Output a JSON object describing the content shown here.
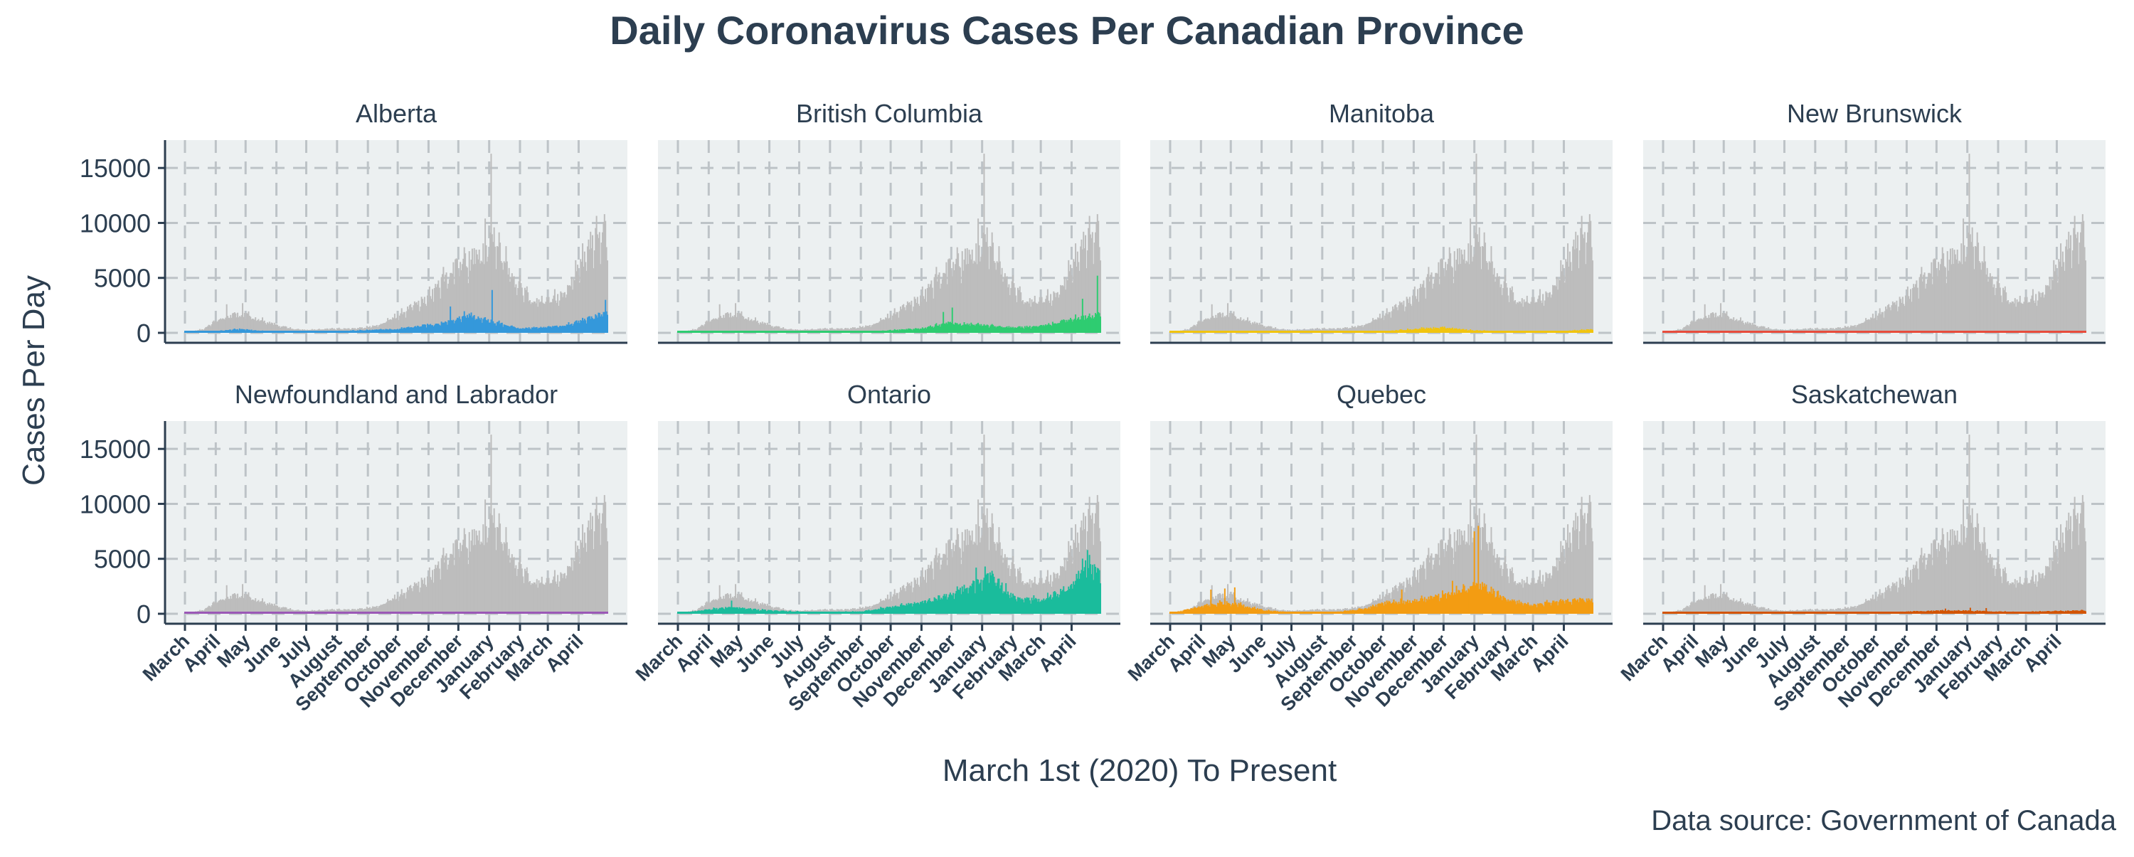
{
  "chart_data": {
    "type": "bar",
    "title": "Daily Coronavirus Cases Per Canadian Province",
    "xlabel": "March 1st (2020) To Present",
    "ylabel": "Cases Per Day",
    "caption": "Data source: Government of Canada",
    "ylim": [
      0,
      16500
    ],
    "yticks": [
      0,
      5000,
      10000,
      15000
    ],
    "x_range": [
      "2020-03-01",
      "2021-04-30"
    ],
    "month_ticks": [
      {
        "date": "2020-03-01",
        "label": "March"
      },
      {
        "date": "2020-04-01",
        "label": "April"
      },
      {
        "date": "2020-05-01",
        "label": "May"
      },
      {
        "date": "2020-06-01",
        "label": "June"
      },
      {
        "date": "2020-07-01",
        "label": "July"
      },
      {
        "date": "2020-08-01",
        "label": "August"
      },
      {
        "date": "2020-09-01",
        "label": "September"
      },
      {
        "date": "2020-10-01",
        "label": "October"
      },
      {
        "date": "2020-11-01",
        "label": "November"
      },
      {
        "date": "2020-12-01",
        "label": "December"
      },
      {
        "date": "2021-01-01",
        "label": "January"
      },
      {
        "date": "2021-02-01",
        "label": "February"
      },
      {
        "date": "2021-03-01",
        "label": "March"
      },
      {
        "date": "2021-04-01",
        "label": "April"
      }
    ],
    "grid": true,
    "background_color": "#ecf0f1",
    "grid_color": "#bdc3c7",
    "text_color": "#2c3e50",
    "national_series": {
      "color": "#bdbdbd",
      "points": [
        [
          "2020-03-01",
          0
        ],
        [
          "2020-03-20",
          350
        ],
        [
          "2020-04-01",
          1100
        ],
        [
          "2020-04-10",
          1400
        ],
        [
          "2020-04-20",
          1700
        ],
        [
          "2020-05-01",
          1600
        ],
        [
          "2020-05-15",
          1200
        ],
        [
          "2020-06-01",
          750
        ],
        [
          "2020-06-15",
          400
        ],
        [
          "2020-07-01",
          280
        ],
        [
          "2020-07-15",
          330
        ],
        [
          "2020-08-01",
          380
        ],
        [
          "2020-08-15",
          370
        ],
        [
          "2020-09-01",
          500
        ],
        [
          "2020-09-15",
          850
        ],
        [
          "2020-10-01",
          1600
        ],
        [
          "2020-10-15",
          2400
        ],
        [
          "2020-11-01",
          3200
        ],
        [
          "2020-11-15",
          4800
        ],
        [
          "2020-12-01",
          6000
        ],
        [
          "2020-12-15",
          6700
        ],
        [
          "2020-12-25",
          7000
        ],
        [
          "2021-01-01",
          8000
        ],
        [
          "2021-01-08",
          8400
        ],
        [
          "2021-01-15",
          6500
        ],
        [
          "2021-02-01",
          4200
        ],
        [
          "2021-02-15",
          3000
        ],
        [
          "2021-03-01",
          2900
        ],
        [
          "2021-03-15",
          3300
        ],
        [
          "2021-04-01",
          5500
        ],
        [
          "2021-04-10",
          7500
        ],
        [
          "2021-04-20",
          8800
        ],
        [
          "2021-04-30",
          9000
        ]
      ],
      "spikes": [
        [
          "2021-01-03",
          16300
        ],
        [
          "2021-04-27",
          10800
        ],
        [
          "2020-04-12",
          2600
        ],
        [
          "2020-04-28",
          2700
        ],
        [
          "2020-12-28",
          10400
        ],
        [
          "2020-11-16",
          6000
        ],
        [
          "2021-04-13",
          9200
        ]
      ]
    },
    "panels": [
      {
        "name": "Alberta",
        "color": "#3498db",
        "points": [
          [
            "2020-03-01",
            0
          ],
          [
            "2020-04-01",
            150
          ],
          [
            "2020-04-25",
            350
          ],
          [
            "2020-06-01",
            50
          ],
          [
            "2020-08-01",
            150
          ],
          [
            "2020-10-01",
            350
          ],
          [
            "2020-11-15",
            900
          ],
          [
            "2020-12-10",
            1600
          ],
          [
            "2021-01-01",
            1100
          ],
          [
            "2021-02-01",
            400
          ],
          [
            "2021-03-15",
            600
          ],
          [
            "2021-04-15",
            1400
          ],
          [
            "2021-04-30",
            1900
          ]
        ],
        "spikes": [
          [
            "2020-11-23",
            2400
          ],
          [
            "2021-01-04",
            3900
          ],
          [
            "2021-04-28",
            3000
          ],
          [
            "2020-12-14",
            1850
          ]
        ]
      },
      {
        "name": "British Columbia",
        "color": "#2ecc71",
        "points": [
          [
            "2020-03-01",
            0
          ],
          [
            "2020-04-01",
            60
          ],
          [
            "2020-06-01",
            20
          ],
          [
            "2020-08-01",
            60
          ],
          [
            "2020-09-15",
            150
          ],
          [
            "2020-11-01",
            400
          ],
          [
            "2020-11-25",
            900
          ],
          [
            "2020-12-20",
            750
          ],
          [
            "2021-01-10",
            650
          ],
          [
            "2021-02-01",
            500
          ],
          [
            "2021-03-01",
            600
          ],
          [
            "2021-04-01",
            1300
          ],
          [
            "2021-04-15",
            1400
          ],
          [
            "2021-04-30",
            1800
          ]
        ],
        "spikes": [
          [
            "2021-04-27",
            5200
          ],
          [
            "2020-12-02",
            2300
          ],
          [
            "2021-04-12",
            3100
          ],
          [
            "2020-11-23",
            1900
          ]
        ]
      },
      {
        "name": "Manitoba",
        "color": "#f1c40f",
        "points": [
          [
            "2020-03-01",
            0
          ],
          [
            "2020-04-01",
            40
          ],
          [
            "2020-06-01",
            10
          ],
          [
            "2020-08-01",
            50
          ],
          [
            "2020-10-01",
            120
          ],
          [
            "2020-11-10",
            420
          ],
          [
            "2020-12-01",
            500
          ],
          [
            "2021-01-01",
            220
          ],
          [
            "2021-02-15",
            70
          ],
          [
            "2021-04-01",
            160
          ],
          [
            "2021-04-30",
            320
          ]
        ],
        "spikes": []
      },
      {
        "name": "New Brunswick",
        "color": "#e74c3c",
        "points": [
          [
            "2020-03-01",
            0
          ],
          [
            "2020-04-01",
            10
          ],
          [
            "2020-10-01",
            10
          ],
          [
            "2021-01-15",
            30
          ],
          [
            "2021-02-15",
            15
          ],
          [
            "2021-04-15",
            30
          ],
          [
            "2021-04-30",
            20
          ]
        ],
        "spikes": []
      },
      {
        "name": "Newfoundland and Labrador",
        "color": "#9b59b6",
        "points": [
          [
            "2020-03-01",
            0
          ],
          [
            "2020-04-01",
            15
          ],
          [
            "2020-10-01",
            5
          ],
          [
            "2021-02-12",
            100
          ],
          [
            "2021-03-01",
            20
          ],
          [
            "2021-04-30",
            10
          ]
        ],
        "spikes": []
      },
      {
        "name": "Ontario",
        "color": "#1abc9c",
        "points": [
          [
            "2020-03-01",
            0
          ],
          [
            "2020-04-01",
            400
          ],
          [
            "2020-04-25",
            600
          ],
          [
            "2020-06-01",
            300
          ],
          [
            "2020-07-15",
            150
          ],
          [
            "2020-09-01",
            200
          ],
          [
            "2020-10-01",
            650
          ],
          [
            "2020-11-01",
            1000
          ],
          [
            "2020-12-01",
            1800
          ],
          [
            "2021-01-01",
            3000
          ],
          [
            "2021-01-10",
            3500
          ],
          [
            "2021-02-01",
            1600
          ],
          [
            "2021-03-01",
            1200
          ],
          [
            "2021-04-01",
            2500
          ],
          [
            "2021-04-15",
            4300
          ],
          [
            "2021-04-30",
            3800
          ]
        ],
        "spikes": [
          [
            "2020-04-24",
            1200
          ],
          [
            "2021-01-04",
            4300
          ],
          [
            "2021-04-17",
            5800
          ],
          [
            "2020-12-26",
            4200
          ]
        ]
      },
      {
        "name": "Quebec",
        "color": "#f39c12",
        "points": [
          [
            "2020-03-01",
            0
          ],
          [
            "2020-04-01",
            700
          ],
          [
            "2020-04-20",
            1000
          ],
          [
            "2020-05-10",
            850
          ],
          [
            "2020-06-01",
            350
          ],
          [
            "2020-07-01",
            120
          ],
          [
            "2020-08-15",
            150
          ],
          [
            "2020-09-15",
            500
          ],
          [
            "2020-10-01",
            1000
          ],
          [
            "2020-11-01",
            1150
          ],
          [
            "2020-12-01",
            1700
          ],
          [
            "2020-12-20",
            2200
          ],
          [
            "2021-01-08",
            2700
          ],
          [
            "2021-02-01",
            1300
          ],
          [
            "2021-03-01",
            800
          ],
          [
            "2021-04-01",
            1200
          ],
          [
            "2021-04-30",
            1300
          ]
        ],
        "spikes": [
          [
            "2020-04-11",
            2200
          ],
          [
            "2020-04-25",
            2300
          ],
          [
            "2020-05-05",
            2400
          ],
          [
            "2021-01-01",
            7500
          ],
          [
            "2021-01-05",
            8000
          ],
          [
            "2020-10-20",
            2200
          ],
          [
            "2020-12-10",
            3000
          ]
        ]
      },
      {
        "name": "Saskatchewan",
        "color": "#d35400",
        "points": [
          [
            "2020-03-01",
            0
          ],
          [
            "2020-04-01",
            20
          ],
          [
            "2020-08-01",
            20
          ],
          [
            "2020-10-01",
            70
          ],
          [
            "2020-11-15",
            250
          ],
          [
            "2020-12-15",
            300
          ],
          [
            "2021-01-01",
            280
          ],
          [
            "2021-02-01",
            200
          ],
          [
            "2021-03-01",
            170
          ],
          [
            "2021-04-01",
            250
          ],
          [
            "2021-04-30",
            300
          ]
        ],
        "spikes": [
          [
            "2020-12-10",
            470
          ],
          [
            "2021-01-04",
            550
          ],
          [
            "2021-01-20",
            520
          ]
        ]
      }
    ]
  }
}
